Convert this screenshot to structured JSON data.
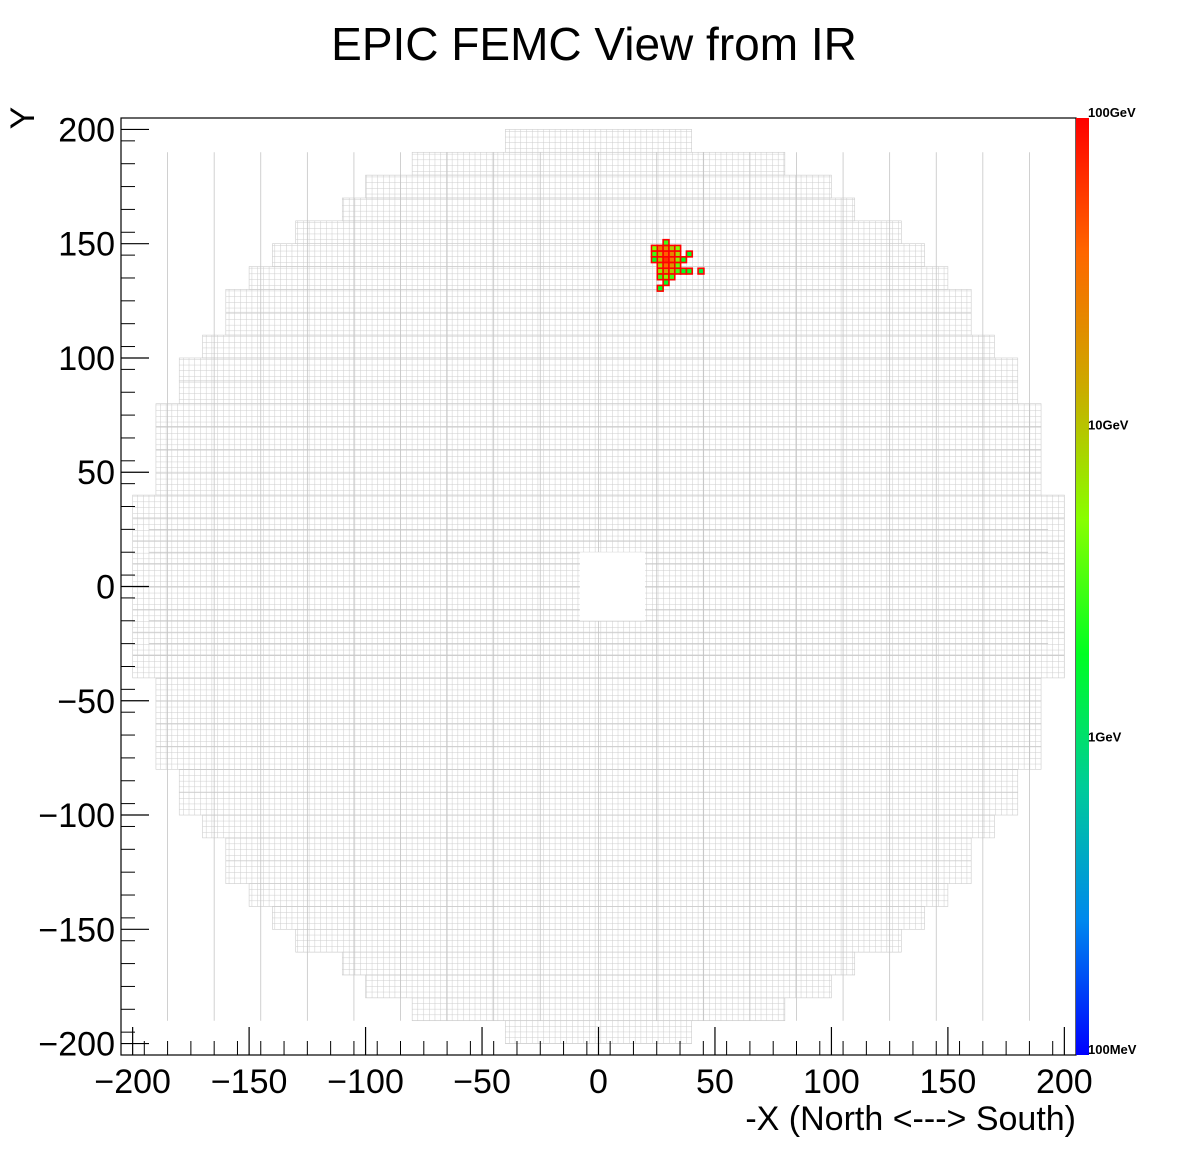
{
  "chart_data": {
    "type": "heatmap",
    "title": "EPIC FEMC View from IR",
    "xlabel": "-X (North <---> South)",
    "ylabel": "Y",
    "xlim": [
      -205,
      205
    ],
    "ylim": [
      -205,
      205
    ],
    "x_ticks": [
      -200,
      -150,
      -100,
      -50,
      0,
      50,
      100,
      150,
      200
    ],
    "y_ticks": [
      -200,
      -150,
      -100,
      -50,
      0,
      50,
      100,
      150,
      200
    ],
    "x_tick_labels": [
      "−200",
      "−150",
      "−100",
      "−50",
      "0",
      "50",
      "100",
      "150",
      "200"
    ],
    "y_tick_labels": [
      "−200",
      "−150",
      "−100",
      "−50",
      "0",
      "50",
      "100",
      "150",
      "200"
    ],
    "colorbar": {
      "scale": "log",
      "range_gev": [
        0.1,
        100
      ],
      "labels": [
        "100GeV",
        "10GeV",
        "1GeV",
        "100MeV"
      ],
      "label_values_gev": [
        100,
        10,
        1,
        0.1
      ],
      "colors": [
        "#0000ff",
        "#0088ee",
        "#00cc99",
        "#00ff22",
        "#88ff00",
        "#ccaa00",
        "#ff6600",
        "#ff0000"
      ]
    },
    "detector": {
      "tower_size": 2.5,
      "outer_radius": 200,
      "beam_hole": {
        "x": [
          -8,
          20
        ],
        "y": [
          -15,
          15
        ]
      },
      "grid_color": "#cccccc"
    },
    "hits": [
      {
        "x": 24,
        "y": 148,
        "e": 5
      },
      {
        "x": 26.5,
        "y": 148,
        "e": 30
      },
      {
        "x": 29,
        "y": 148,
        "e": 20
      },
      {
        "x": 31.5,
        "y": 148,
        "e": 10
      },
      {
        "x": 34,
        "y": 148,
        "e": 5
      },
      {
        "x": 29,
        "y": 150.5,
        "e": 3
      },
      {
        "x": 24,
        "y": 145.5,
        "e": 3
      },
      {
        "x": 26.5,
        "y": 145.5,
        "e": 15
      },
      {
        "x": 29,
        "y": 145.5,
        "e": 40
      },
      {
        "x": 31.5,
        "y": 145.5,
        "e": 25
      },
      {
        "x": 34,
        "y": 145.5,
        "e": 8
      },
      {
        "x": 24,
        "y": 143,
        "e": 2
      },
      {
        "x": 26.5,
        "y": 143,
        "e": 12
      },
      {
        "x": 29,
        "y": 143,
        "e": 60
      },
      {
        "x": 31.5,
        "y": 143,
        "e": 30
      },
      {
        "x": 34,
        "y": 143,
        "e": 6
      },
      {
        "x": 36.5,
        "y": 143,
        "e": 2
      },
      {
        "x": 26.5,
        "y": 140.5,
        "e": 8
      },
      {
        "x": 29,
        "y": 140.5,
        "e": 35
      },
      {
        "x": 31.5,
        "y": 140.5,
        "e": 20
      },
      {
        "x": 34,
        "y": 140.5,
        "e": 4
      },
      {
        "x": 39,
        "y": 145.5,
        "e": 2
      },
      {
        "x": 26.5,
        "y": 138,
        "e": 6
      },
      {
        "x": 29,
        "y": 138,
        "e": 15
      },
      {
        "x": 31.5,
        "y": 138,
        "e": 10
      },
      {
        "x": 34,
        "y": 138,
        "e": 3
      },
      {
        "x": 36.5,
        "y": 138,
        "e": 2
      },
      {
        "x": 39,
        "y": 138,
        "e": 2
      },
      {
        "x": 44,
        "y": 138,
        "e": 1.5
      },
      {
        "x": 26.5,
        "y": 135.5,
        "e": 3
      },
      {
        "x": 29,
        "y": 135.5,
        "e": 6
      },
      {
        "x": 31.5,
        "y": 135.5,
        "e": 3
      },
      {
        "x": 29,
        "y": 133,
        "e": 2
      },
      {
        "x": 26.5,
        "y": 130.5,
        "e": 2
      }
    ]
  }
}
